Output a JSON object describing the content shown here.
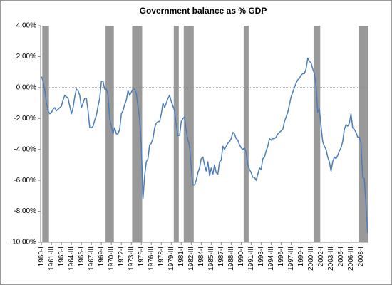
{
  "chart_data": {
    "type": "line",
    "title": "Government balance as % GDP",
    "categories": [
      "1960-I",
      null,
      null,
      null,
      null,
      null,
      "1961-III",
      null,
      null,
      null,
      null,
      null,
      "1963-I",
      null,
      null,
      null,
      null,
      null,
      "1964-III",
      null,
      null,
      null,
      null,
      null,
      "1966-I",
      null,
      null,
      null,
      null,
      null,
      "1967-III",
      null,
      null,
      null,
      null,
      null,
      "1969-I",
      null,
      null,
      null,
      null,
      null,
      "1970-III",
      null,
      null,
      null,
      null,
      null,
      "1972-I",
      null,
      null,
      null,
      null,
      null,
      "1973-III",
      null,
      null,
      null,
      null,
      null,
      "1975-I",
      null,
      null,
      null,
      null,
      null,
      "1976-III",
      null,
      null,
      null,
      null,
      null,
      "1978-I",
      null,
      null,
      null,
      null,
      null,
      "1979-III",
      null,
      null,
      null,
      null,
      null,
      "1981-I",
      null,
      null,
      null,
      null,
      null,
      "1982-III",
      null,
      null,
      null,
      null,
      null,
      "1984-I",
      null,
      null,
      null,
      null,
      null,
      "1985-III",
      null,
      null,
      null,
      null,
      null,
      "1987-I",
      null,
      null,
      null,
      null,
      null,
      "1988-III",
      null,
      null,
      null,
      null,
      null,
      "1990-I",
      null,
      null,
      null,
      null,
      null,
      "1991-III",
      null,
      null,
      null,
      null,
      null,
      "1993-I",
      null,
      null,
      null,
      null,
      null,
      "1994-III",
      null,
      null,
      null,
      null,
      null,
      "1996-I",
      null,
      null,
      null,
      null,
      null,
      "1997-III",
      null,
      null,
      null,
      null,
      null,
      "1999-I",
      null,
      null,
      null,
      null,
      null,
      "2000-III",
      null,
      null,
      null,
      null,
      null,
      "2002-I",
      null,
      null,
      null,
      null,
      null,
      "2003-III",
      null,
      null,
      null,
      null,
      null,
      "2005-I",
      null,
      null,
      null,
      null,
      null,
      "2006-III",
      null,
      null,
      null,
      null,
      null,
      "2008-I",
      null,
      null,
      null,
      null
    ],
    "values": [
      0.7,
      0.4,
      -0.2,
      -1.0,
      -1.5,
      -1.7,
      -1.6,
      -1.4,
      -1.3,
      -1.5,
      -1.4,
      -1.3,
      -1.2,
      -0.8,
      -0.5,
      -0.6,
      -0.7,
      -1.2,
      -1.7,
      -1.3,
      -0.6,
      -0.1,
      -0.2,
      -0.5,
      -1.3,
      -1.0,
      -0.7,
      -0.7,
      -1.5,
      -2.6,
      -2.6,
      -2.5,
      -2.1,
      -1.8,
      -1.2,
      -0.7,
      0.4,
      0.4,
      -0.1,
      -0.1,
      -0.5,
      -2.0,
      -2.5,
      -3.0,
      -2.6,
      -3.0,
      -3.0,
      -2.7,
      -1.7,
      -1.5,
      -1.1,
      -0.8,
      -0.2,
      -0.5,
      -0.3,
      -0.1,
      -0.1,
      -0.4,
      -1.2,
      -2.1,
      -3.8,
      -7.2,
      -5.7,
      -4.8,
      -4.6,
      -3.7,
      -3.6,
      -3.3,
      -2.6,
      -2.3,
      -2.2,
      -2.2,
      -1.7,
      -1.0,
      -1.3,
      -1.0,
      -0.7,
      -0.5,
      -0.9,
      -1.2,
      -1.5,
      -2.4,
      -3.1,
      -3.1,
      -2.2,
      -2.0,
      -1.9,
      -2.8,
      -3.4,
      -3.8,
      -5.2,
      -6.3,
      -6.3,
      -6.0,
      -5.5,
      -5.2,
      -4.6,
      -4.5,
      -5.0,
      -5.4,
      -4.8,
      -5.7,
      -5.2,
      -5.6,
      -5.0,
      -5.5,
      -5.6,
      -4.8,
      -4.7,
      -3.8,
      -4.0,
      -3.8,
      -3.6,
      -3.5,
      -3.3,
      -2.9,
      -3.0,
      -3.3,
      -3.4,
      -3.7,
      -3.9,
      -4.0,
      -3.9,
      -4.2,
      -5.0,
      -5.3,
      -5.5,
      -5.8,
      -5.8,
      -6.0,
      -5.6,
      -5.2,
      -5.3,
      -4.6,
      -4.5,
      -4.1,
      -3.8,
      -3.3,
      -3.4,
      -3.3,
      -3.3,
      -3.2,
      -3.0,
      -2.9,
      -2.8,
      -2.7,
      -2.2,
      -1.9,
      -1.6,
      -1.1,
      -0.6,
      -0.3,
      0.0,
      0.3,
      0.5,
      0.6,
      0.8,
      0.9,
      0.9,
      1.2,
      1.9,
      1.7,
      1.6,
      1.2,
      0.9,
      0.1,
      -1.6,
      -1.4,
      -2.5,
      -3.5,
      -3.8,
      -4.0,
      -4.5,
      -4.8,
      -5.4,
      -4.8,
      -4.5,
      -4.6,
      -4.4,
      -4.1,
      -3.9,
      -3.5,
      -2.7,
      -2.4,
      -2.5,
      -2.3,
      -1.7,
      -2.6,
      -2.7,
      -2.9,
      -3.2,
      -3.2,
      -3.6,
      -5.8,
      -5.9,
      -7.6,
      -9.4
    ],
    "color": "#4a7ebb",
    "shaded": [
      [
        1,
        4
      ],
      [
        39,
        43
      ],
      [
        55,
        60
      ],
      [
        80,
        82
      ],
      [
        86,
        91
      ],
      [
        122,
        124
      ],
      [
        164,
        167
      ],
      [
        191,
        196
      ]
    ],
    "shade_color": "#999999",
    "ylim": [
      -10,
      4
    ],
    "yticks": [
      {
        "value": -10,
        "label": "-10.00%"
      },
      {
        "value": -8,
        "label": "-8.00%"
      },
      {
        "value": -6,
        "label": "-6.00%"
      },
      {
        "value": -4,
        "label": "-4.00%"
      },
      {
        "value": -2,
        "label": "-2.00%"
      },
      {
        "value": 0,
        "label": "0.00%"
      },
      {
        "value": 2,
        "label": "2.00%"
      },
      {
        "value": 4,
        "label": "4.00%"
      }
    ],
    "grid": false
  }
}
